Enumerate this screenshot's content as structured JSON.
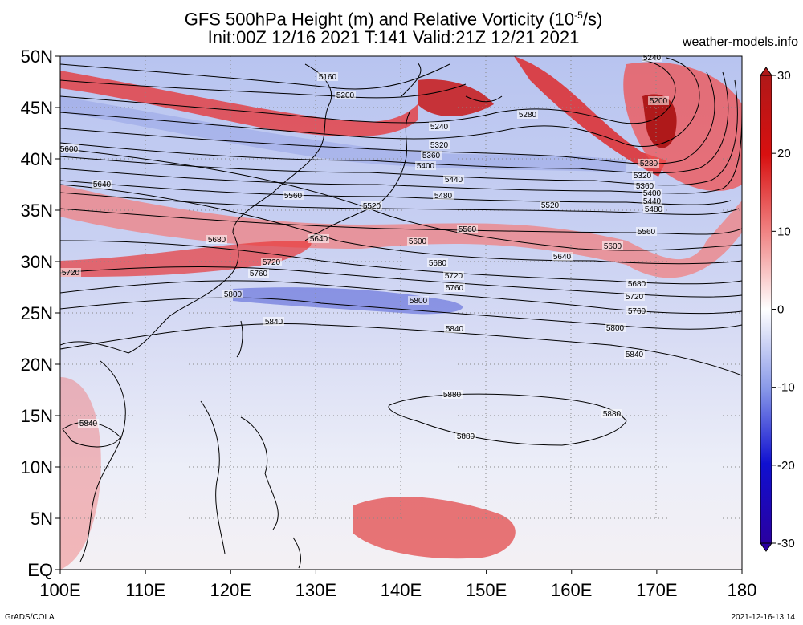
{
  "title": {
    "line1": "GFS 500hPa Height (m) and Relative Vorticity (10",
    "line1_sup": "-5",
    "line1_end": "/s)",
    "line2": "Init:00Z 12/16 2021 T:141 Valid:21Z 12/21 2021"
  },
  "site": "weather-models.info",
  "footer": {
    "left": "GrADS/COLA",
    "right": "2021-12-16-13:14"
  },
  "axes": {
    "lat_labels": [
      "50N",
      "45N",
      "40N",
      "35N",
      "30N",
      "25N",
      "20N",
      "15N",
      "10N",
      "5N",
      "EQ"
    ],
    "lon_labels": [
      "100E",
      "110E",
      "120E",
      "130E",
      "140E",
      "150E",
      "160E",
      "170E",
      "180"
    ]
  },
  "colorbar": {
    "labels": [
      "30",
      "20",
      "10",
      "0",
      "-10",
      "-20",
      "-30"
    ],
    "colors": [
      "#2a00a0",
      "#1010d0",
      "#5a6ee8",
      "#a8b4f0",
      "#ffffff",
      "#f4b0b0",
      "#e85050",
      "#d81010",
      "#b01818"
    ]
  },
  "contours": [
    {
      "value": "5160",
      "labels": [
        "5160"
      ]
    },
    {
      "value": "5200",
      "labels": [
        "5200",
        "5200"
      ]
    },
    {
      "value": "5240",
      "labels": [
        "5240",
        "5240"
      ]
    },
    {
      "value": "5280",
      "labels": [
        "5280",
        "5280"
      ]
    },
    {
      "value": "5320",
      "labels": [
        "5320",
        "5320"
      ]
    },
    {
      "value": "5360",
      "labels": [
        "5360",
        "5360"
      ]
    },
    {
      "value": "5400",
      "labels": [
        "5400",
        "5400"
      ]
    },
    {
      "value": "5440",
      "labels": [
        "5440",
        "5440"
      ]
    },
    {
      "value": "5480",
      "labels": [
        "5480",
        "5480"
      ]
    },
    {
      "value": "5520",
      "labels": [
        "5520",
        "5520"
      ]
    },
    {
      "value": "5560",
      "labels": [
        "5560",
        "5560",
        "5560"
      ]
    },
    {
      "value": "5600",
      "labels": [
        "5600",
        "5600",
        "5600"
      ]
    },
    {
      "value": "5640",
      "labels": [
        "5640",
        "5640",
        "5640"
      ]
    },
    {
      "value": "5680",
      "labels": [
        "5680",
        "5680",
        "5680"
      ]
    },
    {
      "value": "5720",
      "labels": [
        "5720",
        "5720",
        "5720",
        "5720"
      ]
    },
    {
      "value": "5760",
      "labels": [
        "5760",
        "5760",
        "5760"
      ]
    },
    {
      "value": "5800",
      "labels": [
        "5800",
        "5800",
        "5800"
      ]
    },
    {
      "value": "5840",
      "labels": [
        "5840",
        "5840",
        "5840",
        "5840"
      ]
    },
    {
      "value": "5880",
      "labels": [
        "5880",
        "5880",
        "5880"
      ]
    }
  ]
}
